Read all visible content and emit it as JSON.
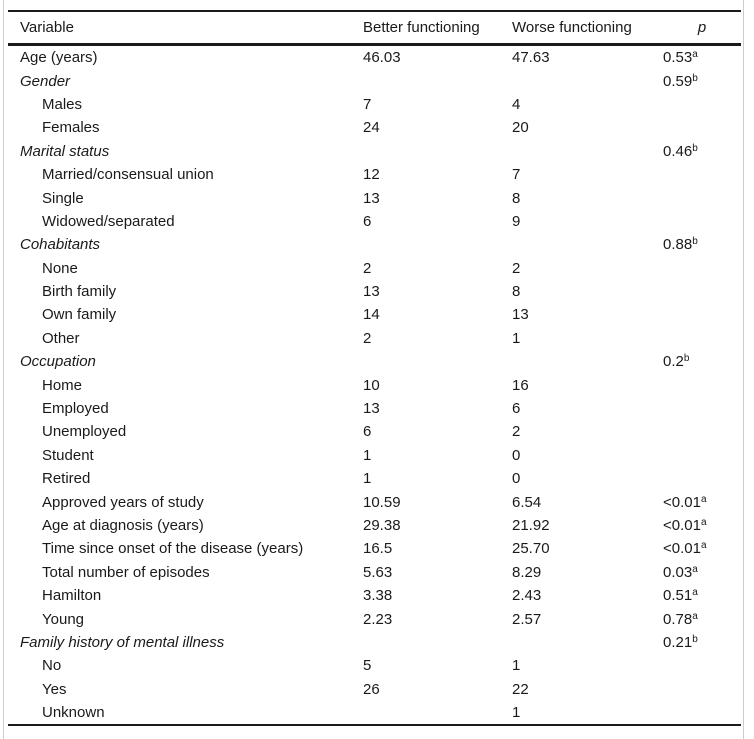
{
  "table": {
    "headers": {
      "variable": "Variable",
      "better": "Better functioning",
      "worse": "Worse functioning",
      "p": "p"
    },
    "rows": [
      {
        "label": "Age (years)",
        "style": "plain",
        "better": "46.03",
        "worse": "47.63",
        "p": "0.53",
        "p_sup": "a"
      },
      {
        "label": "Gender",
        "style": "group",
        "better": "",
        "worse": "",
        "p": "0.59",
        "p_sup": "b"
      },
      {
        "label": "Males",
        "style": "sub",
        "better": "7",
        "worse": "4",
        "p": "",
        "p_sup": ""
      },
      {
        "label": "Females",
        "style": "sub",
        "better": "24",
        "worse": "20",
        "p": "",
        "p_sup": ""
      },
      {
        "label": "Marital status",
        "style": "group",
        "better": "",
        "worse": "",
        "p": "0.46",
        "p_sup": "b"
      },
      {
        "label": "Married/consensual union",
        "style": "sub",
        "better": "12",
        "worse": "7",
        "p": "",
        "p_sup": ""
      },
      {
        "label": "Single",
        "style": "sub",
        "better": "13",
        "worse": "8",
        "p": "",
        "p_sup": ""
      },
      {
        "label": "Widowed/separated",
        "style": "sub",
        "better": "6",
        "worse": "9",
        "p": "",
        "p_sup": ""
      },
      {
        "label": "Cohabitants",
        "style": "group",
        "better": "",
        "worse": "",
        "p": "0.88",
        "p_sup": "b"
      },
      {
        "label": "None",
        "style": "sub",
        "better": "2",
        "worse": "2",
        "p": "",
        "p_sup": ""
      },
      {
        "label": "Birth family",
        "style": "sub",
        "better": "13",
        "worse": "8",
        "p": "",
        "p_sup": ""
      },
      {
        "label": "Own family",
        "style": "sub",
        "better": "14",
        "worse": "13",
        "p": "",
        "p_sup": ""
      },
      {
        "label": "Other",
        "style": "sub",
        "better": "2",
        "worse": "1",
        "p": "",
        "p_sup": ""
      },
      {
        "label": "Occupation",
        "style": "group",
        "better": "",
        "worse": "",
        "p": "0.2",
        "p_sup": "b"
      },
      {
        "label": "Home",
        "style": "sub",
        "better": "10",
        "worse": "16",
        "p": "",
        "p_sup": ""
      },
      {
        "label": "Employed",
        "style": "sub",
        "better": "13",
        "worse": "6",
        "p": "",
        "p_sup": ""
      },
      {
        "label": "Unemployed",
        "style": "sub",
        "better": "6",
        "worse": "2",
        "p": "",
        "p_sup": ""
      },
      {
        "label": "Student",
        "style": "sub",
        "better": "1",
        "worse": "0",
        "p": "",
        "p_sup": ""
      },
      {
        "label": "Retired",
        "style": "sub",
        "better": "1",
        "worse": "0",
        "p": "",
        "p_sup": ""
      },
      {
        "label": "Approved years of study",
        "style": "sub",
        "better": "10.59",
        "worse": "6.54",
        "p": "<0.01",
        "p_sup": "a"
      },
      {
        "label": "Age at diagnosis (years)",
        "style": "sub",
        "better": "29.38",
        "worse": "21.92",
        "p": "<0.01",
        "p_sup": "a"
      },
      {
        "label": "Time since onset of the disease (years)",
        "style": "sub",
        "better": "16.5",
        "worse": "25.70",
        "p": "<0.01",
        "p_sup": "a"
      },
      {
        "label": "Total number of episodes",
        "style": "sub",
        "better": "5.63",
        "worse": "8.29",
        "p": "0.03",
        "p_sup": "a"
      },
      {
        "label": "Hamilton",
        "style": "sub",
        "better": "3.38",
        "worse": "2.43",
        "p": "0.51",
        "p_sup": "a"
      },
      {
        "label": "Young",
        "style": "sub",
        "better": "2.23",
        "worse": "2.57",
        "p": "0.78",
        "p_sup": "a"
      },
      {
        "label": "Family history of mental illness",
        "style": "group",
        "better": "",
        "worse": "",
        "p": "0.21",
        "p_sup": "b"
      },
      {
        "label": "No",
        "style": "sub",
        "better": "5",
        "worse": "1",
        "p": "",
        "p_sup": ""
      },
      {
        "label": "Yes",
        "style": "sub",
        "better": "26",
        "worse": "22",
        "p": "",
        "p_sup": ""
      },
      {
        "label": "Unknown",
        "style": "sub",
        "better": "",
        "worse": "1",
        "p": "",
        "p_sup": ""
      }
    ]
  },
  "colors": {
    "text": "#1a1a1a",
    "rule": "#1a1a1a",
    "frame": "#cccccc",
    "background": "#ffffff"
  }
}
